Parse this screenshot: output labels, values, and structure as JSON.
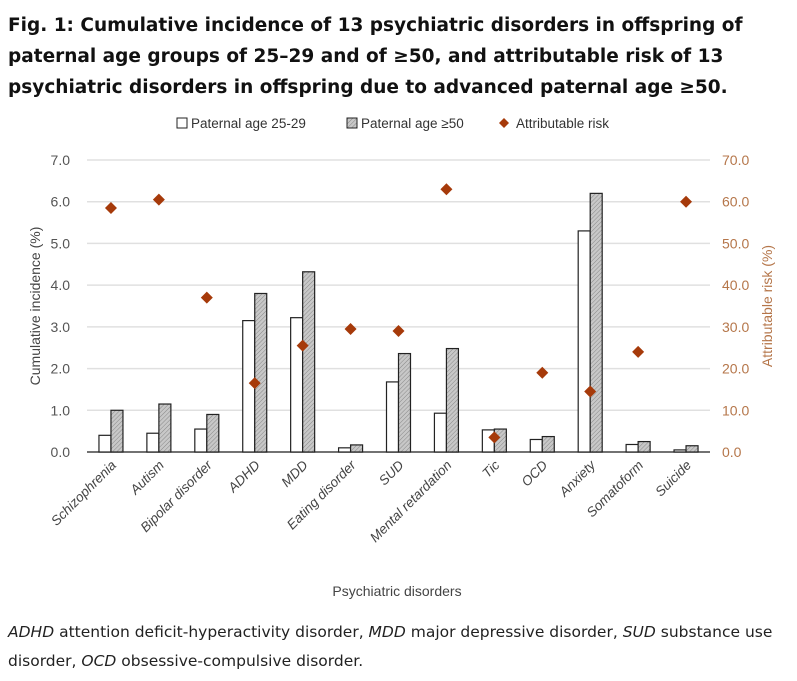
{
  "figure": {
    "title": "Fig. 1: Cumulative incidence of 13 psychiatric disorders in offspring of paternal age groups of 25–29 and of ≥50, and attributable risk of 13 psychiatric disorders in offspring due to advanced paternal age ≥50.",
    "caption": [
      {
        "abbr": "ADHD",
        "text": " attention deficit-hyperactivity disorder, "
      },
      {
        "abbr": "MDD",
        "text": " major depressive disorder, "
      },
      {
        "abbr": "SUD",
        "text": " substance use disorder, "
      },
      {
        "abbr": "OCD",
        "text": " obsessive-compulsive disorder."
      }
    ]
  },
  "colors": {
    "bar_outline": "#222222",
    "hatch": "#bdbdbd",
    "risk": "#a63a0a",
    "right_axis": "#b5764a",
    "grid": "#e0e0e0"
  },
  "chart_data": {
    "type": "bar",
    "title": "",
    "xlabel": "Psychiatric disorders",
    "ylabel": "Cumulative incidence (%)",
    "y2label": "Attributable risk (%)",
    "ylim": [
      0,
      7
    ],
    "y2lim": [
      0,
      70
    ],
    "yticks": [
      "0.0",
      "1.0",
      "2.0",
      "3.0",
      "4.0",
      "5.0",
      "6.0",
      "7.0"
    ],
    "y2ticks": [
      "0.0",
      "10.0",
      "20.0",
      "30.0",
      "40.0",
      "50.0",
      "60.0",
      "70.0"
    ],
    "grid": true,
    "legend_position": "top-center",
    "categories": [
      "Schizophrenia",
      "Autism",
      "Bipolar disorder",
      "ADHD",
      "MDD",
      "Eating disorder",
      "SUD",
      "Mental retardation",
      "Tic",
      "OCD",
      "Anxiety",
      "Somatoform",
      "Suicide"
    ],
    "series": [
      {
        "name": "Paternal age 25-29",
        "type": "bar",
        "values": [
          0.4,
          0.45,
          0.55,
          3.15,
          3.22,
          0.1,
          1.68,
          0.93,
          0.53,
          0.3,
          5.3,
          0.18,
          0.05
        ]
      },
      {
        "name": "Paternal age ≥50",
        "type": "bar",
        "values": [
          1.0,
          1.15,
          0.9,
          3.8,
          4.32,
          0.17,
          2.36,
          2.48,
          0.55,
          0.37,
          6.2,
          0.25,
          0.15
        ]
      },
      {
        "name": "Attributable risk",
        "type": "scatter",
        "axis": "right",
        "values": [
          58.5,
          60.5,
          37.0,
          16.5,
          25.5,
          29.5,
          29.0,
          63.0,
          3.5,
          19.0,
          14.5,
          24.0,
          60.0
        ]
      }
    ]
  }
}
